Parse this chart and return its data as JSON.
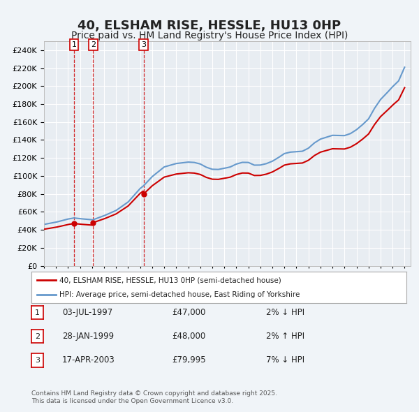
{
  "title": "40, ELSHAM RISE, HESSLE, HU13 0HP",
  "subtitle": "Price paid vs. HM Land Registry's House Price Index (HPI)",
  "title_fontsize": 13,
  "subtitle_fontsize": 10,
  "background_color": "#f0f4f8",
  "plot_bg_color": "#e8edf2",
  "grid_color": "#ffffff",
  "ylim": [
    0,
    250000
  ],
  "yticks": [
    0,
    20000,
    40000,
    60000,
    80000,
    100000,
    120000,
    140000,
    160000,
    180000,
    200000,
    220000,
    240000
  ],
  "sale_color": "#cc0000",
  "hpi_color": "#6699cc",
  "sale_linewidth": 1.5,
  "hpi_linewidth": 1.5,
  "vline_color": "#cc0000",
  "vline_style": "--",
  "sales": [
    {
      "date_num": 1997.5,
      "price": 47000,
      "label": "1"
    },
    {
      "date_num": 1999.08,
      "price": 48000,
      "label": "2"
    },
    {
      "date_num": 2003.29,
      "price": 79995,
      "label": "3"
    }
  ],
  "legend_items": [
    {
      "label": "40, ELSHAM RISE, HESSLE, HU13 0HP (semi-detached house)",
      "color": "#cc0000"
    },
    {
      "label": "HPI: Average price, semi-detached house, East Riding of Yorkshire",
      "color": "#6699cc"
    }
  ],
  "table_rows": [
    {
      "num": "1",
      "date": "03-JUL-1997",
      "price": "£47,000",
      "hpi": "2% ↓ HPI"
    },
    {
      "num": "2",
      "date": "28-JAN-1999",
      "price": "£48,000",
      "hpi": "2% ↑ HPI"
    },
    {
      "num": "3",
      "date": "17-APR-2003",
      "price": "£79,995",
      "hpi": "7% ↓ HPI"
    }
  ],
  "footer": "Contains HM Land Registry data © Crown copyright and database right 2025.\nThis data is licensed under the Open Government Licence v3.0."
}
